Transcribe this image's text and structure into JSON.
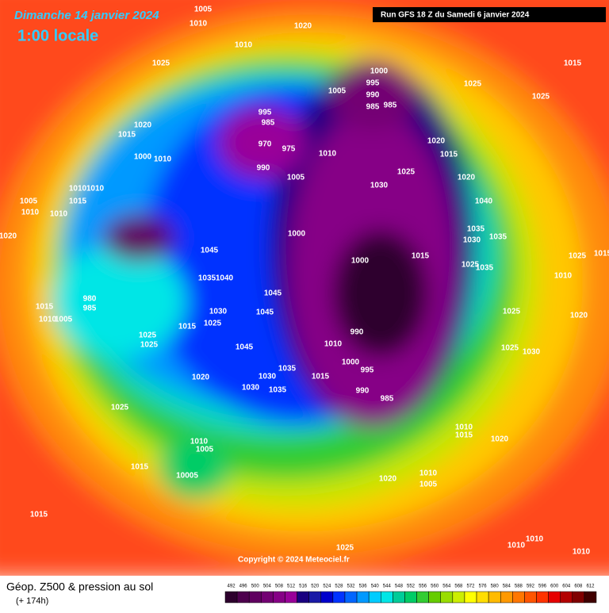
{
  "header": {
    "date": "Dimanche 14 janvier 2024",
    "time": "1:00 locale",
    "run": "Run GFS 18 Z du Samedi 6 janvier 2024"
  },
  "copyright": "Copyright © 2024 Meteociel.fr",
  "footer": {
    "title": "Géop. Z500 & pression au sol",
    "lead": "(+ 174h)"
  },
  "legend": {
    "values": [
      492,
      496,
      500,
      504,
      508,
      512,
      516,
      520,
      524,
      528,
      532,
      536,
      540,
      544,
      548,
      552,
      556,
      560,
      564,
      568,
      572,
      576,
      580,
      584,
      588,
      592,
      596,
      600,
      604,
      608,
      612
    ],
    "colors": [
      "#2d002d",
      "#4d004d",
      "#600060",
      "#730073",
      "#860086",
      "#990099",
      "#1a0080",
      "#1a1aa6",
      "#0000cc",
      "#0033ff",
      "#0066ff",
      "#0099ff",
      "#00ccff",
      "#00e6e6",
      "#00cc99",
      "#00cc66",
      "#33cc33",
      "#66cc00",
      "#99dd00",
      "#ccee00",
      "#ffff00",
      "#ffdd00",
      "#ffbb00",
      "#ff9900",
      "#ff7700",
      "#ff5500",
      "#ff3300",
      "#e60000",
      "#b30000",
      "#800000",
      "#400000"
    ]
  },
  "isobar_labels": [
    1005,
    1010,
    1020,
    1010,
    1025,
    1000,
    995,
    1005,
    990,
    985,
    985,
    995,
    985,
    1020,
    1015,
    970,
    975,
    1010,
    1000,
    1010,
    990,
    1005,
    1025,
    1030,
    1020,
    1015,
    1020,
    1015,
    1025,
    1025,
    1040,
    1010,
    1010,
    1015,
    1005,
    1010,
    1010,
    1020,
    1000,
    1035,
    1030,
    1035,
    1000,
    1015,
    1045,
    1025,
    1015,
    1035,
    1025,
    1010,
    1040,
    1035,
    980,
    985,
    1015,
    1010,
    1005,
    1045,
    1045,
    1030,
    1025,
    1015,
    1025,
    1025,
    1010,
    990,
    1025,
    1020,
    1025,
    1030,
    1045,
    1000,
    995,
    1020,
    1030,
    1015,
    1035,
    1030,
    1035,
    990,
    985,
    1025,
    1010,
    1015,
    1020,
    1010,
    1005,
    1015,
    10005,
    1010,
    1020,
    1005,
    1015,
    1010,
    1010,
    1010,
    1025
  ]
}
